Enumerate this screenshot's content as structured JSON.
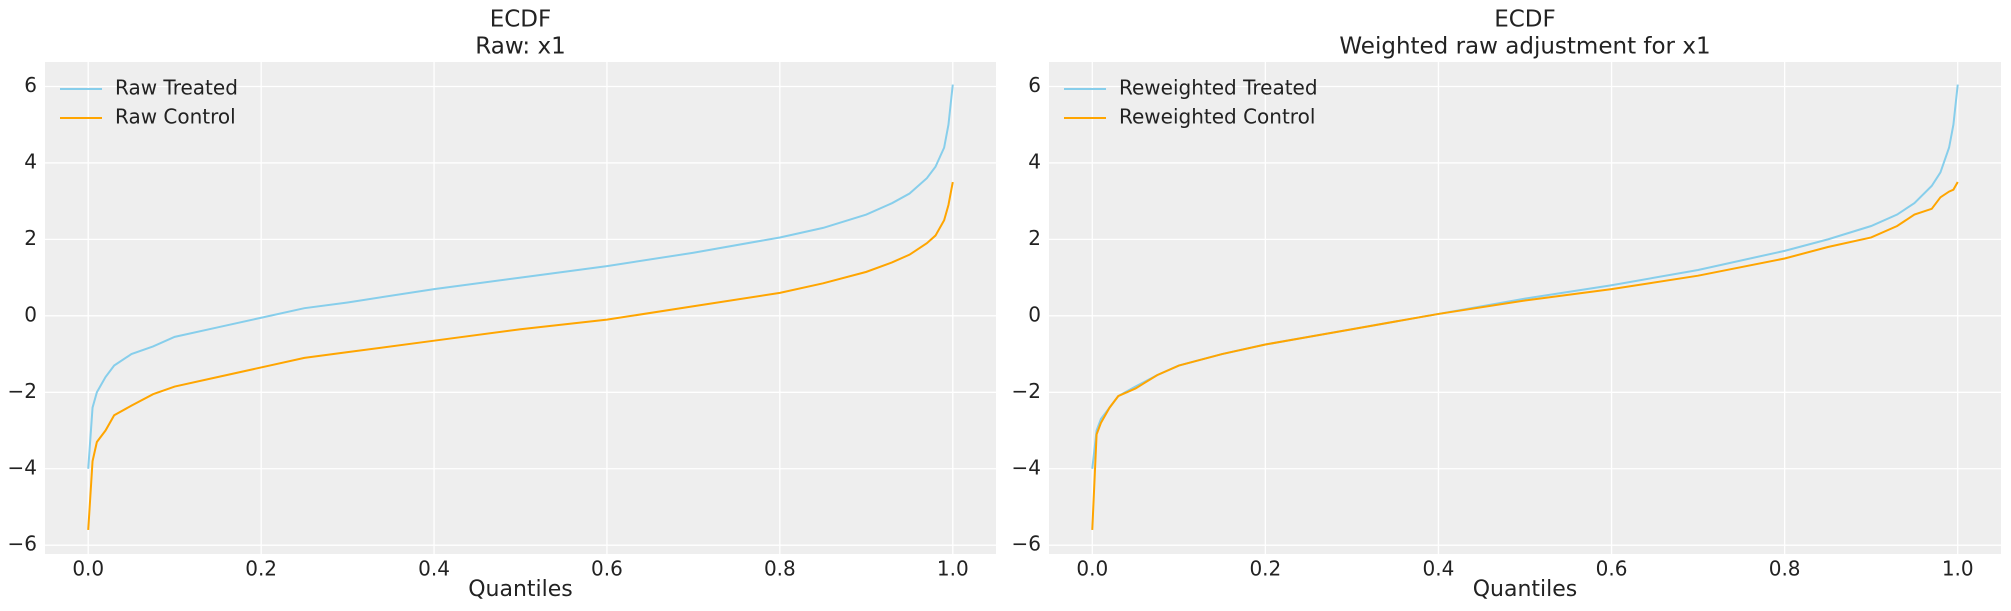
{
  "chart_data": [
    {
      "type": "line",
      "title": "ECDF",
      "subtitle": "Raw: x1",
      "x_label": "Quantiles",
      "x": [
        0,
        0.005,
        0.01,
        0.02,
        0.03,
        0.05,
        0.075,
        0.1,
        0.15,
        0.2,
        0.25,
        0.3,
        0.4,
        0.5,
        0.6,
        0.7,
        0.8,
        0.85,
        0.9,
        0.93,
        0.95,
        0.97,
        0.98,
        0.99,
        0.995,
        1.0
      ],
      "series": [
        {
          "name": "Raw Treated",
          "color": "#87ceeb",
          "values": [
            -4.0,
            -2.4,
            -2.0,
            -1.6,
            -1.3,
            -1.0,
            -0.8,
            -0.55,
            -0.3,
            -0.05,
            0.2,
            0.35,
            0.7,
            1.0,
            1.3,
            1.65,
            2.05,
            2.3,
            2.65,
            2.95,
            3.2,
            3.6,
            3.9,
            4.4,
            5.0,
            6.05
          ]
        },
        {
          "name": "Raw Control",
          "color": "#ffa500",
          "values": [
            -5.6,
            -3.8,
            -3.3,
            -3.0,
            -2.6,
            -2.35,
            -2.05,
            -1.85,
            -1.6,
            -1.35,
            -1.1,
            -0.95,
            -0.65,
            -0.35,
            -0.1,
            0.25,
            0.6,
            0.85,
            1.15,
            1.4,
            1.6,
            1.9,
            2.1,
            2.5,
            2.9,
            3.5
          ]
        }
      ],
      "xlim": [
        -0.05,
        1.05
      ],
      "ylim": [
        -6.23,
        6.64
      ],
      "xticks": [
        {
          "value": 0,
          "label": "0.0"
        },
        0.2,
        0.4,
        0.6,
        0.8,
        {
          "value": 1,
          "label": "1.0"
        }
      ],
      "yticks": [
        {
          "value": -6,
          "label": "−6"
        },
        {
          "value": -4,
          "label": "−4"
        },
        {
          "value": -2,
          "label": "−2"
        },
        0,
        2,
        4,
        6
      ],
      "grid": true,
      "legend": "upper-left"
    },
    {
      "type": "line",
      "title": "ECDF",
      "subtitle": "Weighted raw adjustment for x1",
      "x_label": "Quantiles",
      "x": [
        0,
        0.005,
        0.01,
        0.02,
        0.03,
        0.05,
        0.075,
        0.1,
        0.15,
        0.2,
        0.25,
        0.3,
        0.4,
        0.5,
        0.6,
        0.7,
        0.8,
        0.85,
        0.9,
        0.93,
        0.95,
        0.97,
        0.98,
        0.99,
        0.995,
        1.0
      ],
      "series": [
        {
          "name": "Reweighted Treated",
          "color": "#87ceeb",
          "values": [
            -4.0,
            -3.0,
            -2.7,
            -2.4,
            -2.1,
            -1.85,
            -1.55,
            -1.3,
            -1.0,
            -0.75,
            -0.55,
            -0.35,
            0.05,
            0.45,
            0.8,
            1.2,
            1.7,
            2.0,
            2.35,
            2.65,
            2.95,
            3.4,
            3.75,
            4.4,
            5.0,
            6.05
          ]
        },
        {
          "name": "Reweighted Control",
          "color": "#ffa500",
          "values": [
            -5.6,
            -3.1,
            -2.8,
            -2.4,
            -2.1,
            -1.9,
            -1.55,
            -1.3,
            -1.0,
            -0.75,
            -0.55,
            -0.35,
            0.05,
            0.4,
            0.7,
            1.05,
            1.5,
            1.8,
            2.05,
            2.35,
            2.65,
            2.8,
            3.1,
            3.25,
            3.3,
            3.5
          ]
        }
      ],
      "xlim": [
        -0.05,
        1.05
      ],
      "ylim": [
        -6.23,
        6.64
      ],
      "xticks": [
        {
          "value": 0,
          "label": "0.0"
        },
        0.2,
        0.4,
        0.6,
        0.8,
        {
          "value": 1,
          "label": "1.0"
        }
      ],
      "yticks": [
        {
          "value": -6,
          "label": "−6"
        },
        {
          "value": -4,
          "label": "−4"
        },
        {
          "value": -2,
          "label": "−2"
        },
        0,
        2,
        4,
        6
      ],
      "grid": true,
      "legend": "upper-left"
    }
  ]
}
